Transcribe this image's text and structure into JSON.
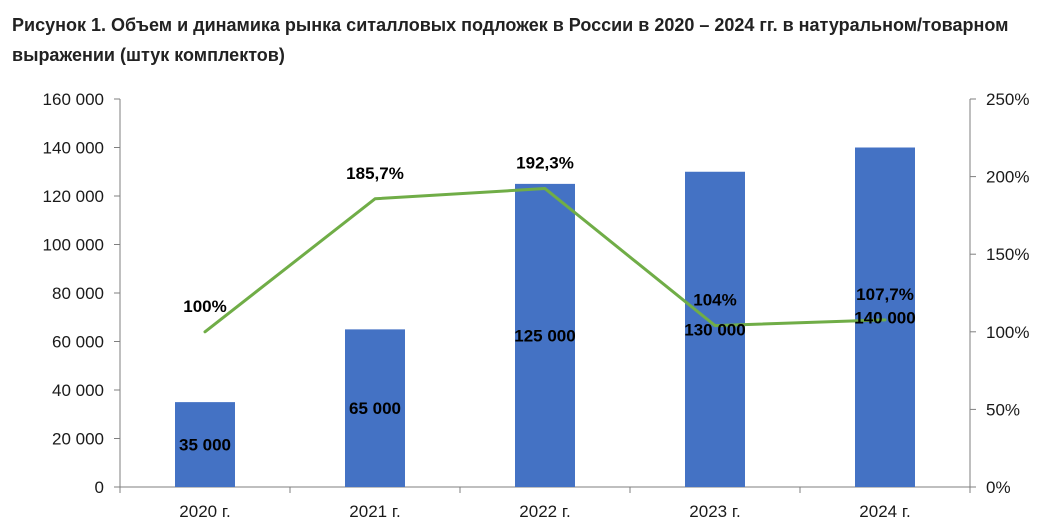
{
  "title": "Рисунок 1. Объем и динамика рынка ситалловых подложек в России в 2020 – 2024 гг. в натуральном/товарном выражении (штук комплектов)",
  "colors": {
    "bars": "#4472C4",
    "line": "#70AD47",
    "axis": "#7f7f7f",
    "text": "#000000"
  },
  "chart_data": {
    "type": "bar",
    "categories": [
      "2020 г.",
      "2021 г.",
      "2022 г.",
      "2023 г.",
      "2024 г."
    ],
    "series": [
      {
        "kind": "bar",
        "axis": "left",
        "values": [
          35000,
          65000,
          125000,
          130000,
          140000
        ],
        "labels": [
          "35 000",
          "65 000",
          "125 000",
          "130 000",
          "140 000"
        ]
      },
      {
        "kind": "line",
        "axis": "right",
        "values": [
          100,
          185.7,
          192.3,
          104,
          107.7
        ],
        "labels": [
          "100%",
          "185,7%",
          "192,3%",
          "104%",
          "107,7%"
        ]
      }
    ],
    "y_left": {
      "ylim": [
        0,
        160000
      ],
      "ticks": [
        0,
        20000,
        40000,
        60000,
        80000,
        100000,
        120000,
        140000,
        160000
      ],
      "tick_labels": [
        "0",
        "20 000",
        "40 000",
        "60 000",
        "80 000",
        "100 000",
        "120 000",
        "140 000",
        "160 000"
      ]
    },
    "y_right": {
      "ylim": [
        0,
        250
      ],
      "ticks": [
        0,
        50,
        100,
        150,
        200,
        250
      ],
      "tick_labels": [
        "0%",
        "50%",
        "100%",
        "150%",
        "200%",
        "250%"
      ]
    },
    "grid": false,
    "legend": "none"
  }
}
